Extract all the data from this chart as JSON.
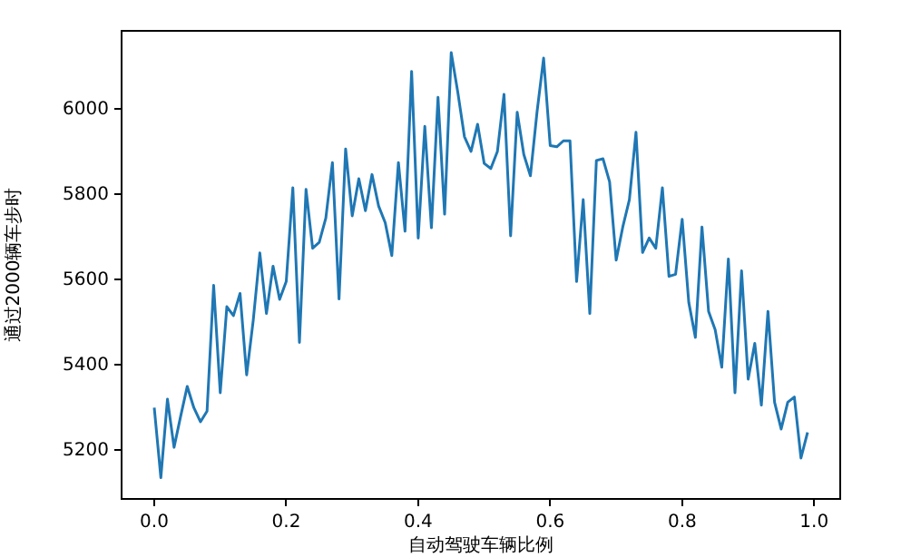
{
  "chart_data": {
    "type": "line",
    "xlabel": "自动驾驶车辆比例",
    "ylabel": "通过2000辆车步时",
    "x": [
      0,
      0.01,
      0.02,
      0.03,
      0.04,
      0.05,
      0.06,
      0.07,
      0.08,
      0.09,
      0.1,
      0.11,
      0.12,
      0.13,
      0.14,
      0.15,
      0.16,
      0.17,
      0.18,
      0.19,
      0.2,
      0.21,
      0.22,
      0.23,
      0.24,
      0.25,
      0.26,
      0.27,
      0.28,
      0.29,
      0.3,
      0.31,
      0.32,
      0.33,
      0.34,
      0.35,
      0.36,
      0.37,
      0.38,
      0.39,
      0.4,
      0.41,
      0.42,
      0.43,
      0.44,
      0.45,
      0.46,
      0.47,
      0.48,
      0.49,
      0.5,
      0.51,
      0.52,
      0.53,
      0.54,
      0.55,
      0.56,
      0.57,
      0.58,
      0.59,
      0.6,
      0.61,
      0.62,
      0.63,
      0.64,
      0.65,
      0.66,
      0.67,
      0.68,
      0.69,
      0.7,
      0.71,
      0.72,
      0.73,
      0.74,
      0.75,
      0.76,
      0.77,
      0.78,
      0.79,
      0.8,
      0.81,
      0.82,
      0.83,
      0.84,
      0.85,
      0.86,
      0.87,
      0.88,
      0.89,
      0.9,
      0.91,
      0.92,
      0.93,
      0.94,
      0.95,
      0.96,
      0.97,
      0.98,
      0.99
    ],
    "series": [
      {
        "color": "#1f77b4",
        "values": [
          5300,
          5136,
          5320,
          5207,
          5280,
          5350,
          5300,
          5267,
          5292,
          5587,
          5335,
          5537,
          5516,
          5568,
          5377,
          5505,
          5663,
          5521,
          5632,
          5554,
          5596,
          5816,
          5453,
          5812,
          5674,
          5688,
          5745,
          5875,
          5555,
          5907,
          5750,
          5837,
          5762,
          5847,
          5773,
          5734,
          5657,
          5875,
          5714,
          6089,
          5698,
          5960,
          5722,
          6028,
          5754,
          6133,
          6040,
          5936,
          5901,
          5965,
          5873,
          5861,
          5901,
          6035,
          5703,
          5993,
          5894,
          5844,
          5993,
          6120,
          5915,
          5912,
          5926,
          5926,
          5596,
          5788,
          5521,
          5880,
          5884,
          5830,
          5646,
          5724,
          5788,
          5946,
          5664,
          5698,
          5674,
          5816,
          5608,
          5613,
          5742,
          5547,
          5465,
          5724,
          5526,
          5483,
          5395,
          5649,
          5335,
          5621,
          5367,
          5451,
          5306,
          5526,
          5313,
          5250,
          5313,
          5325,
          5182,
          5242
        ]
      }
    ],
    "xlim": [
      -0.0495,
      1.0395
    ],
    "ylim": [
      5086,
      6184
    ],
    "xticks": [
      {
        "value": 0,
        "label": "0.0"
      },
      {
        "value": 0.2,
        "label": "0.2"
      },
      {
        "value": 0.4,
        "label": "0.4"
      },
      {
        "value": 0.6,
        "label": "0.6"
      },
      {
        "value": 0.8,
        "label": "0.8"
      },
      {
        "value": 1,
        "label": "1.0"
      }
    ],
    "yticks": [
      5200,
      5400,
      5600,
      5800,
      6000
    ],
    "marker": "none",
    "line_style": "solid",
    "legend": false,
    "grid": false
  }
}
